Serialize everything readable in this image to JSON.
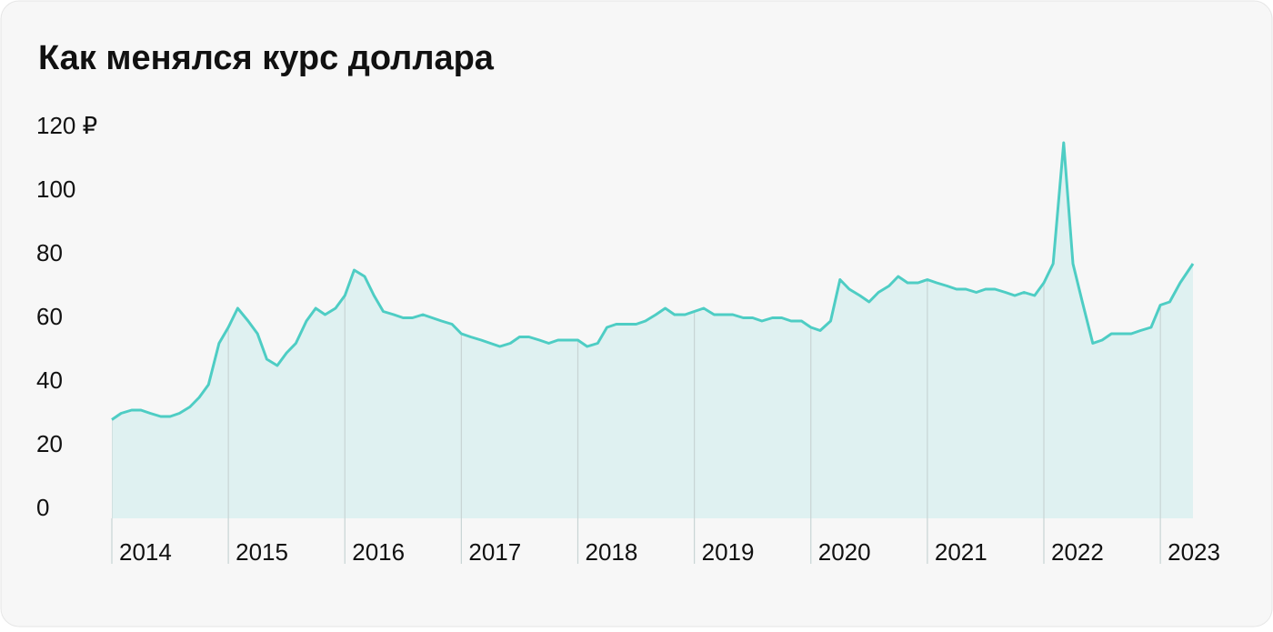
{
  "chart_data": {
    "type": "area",
    "title": "Как менялся курс доллара",
    "x": [
      2014,
      2014.08,
      2014.17,
      2014.25,
      2014.33,
      2014.42,
      2014.5,
      2014.58,
      2014.67,
      2014.75,
      2014.83,
      2014.92,
      2015,
      2015.08,
      2015.17,
      2015.25,
      2015.33,
      2015.42,
      2015.5,
      2015.58,
      2015.67,
      2015.75,
      2015.83,
      2015.92,
      2016,
      2016.08,
      2016.17,
      2016.25,
      2016.33,
      2016.42,
      2016.5,
      2016.58,
      2016.67,
      2016.75,
      2016.83,
      2016.92,
      2017,
      2017.08,
      2017.17,
      2017.25,
      2017.33,
      2017.42,
      2017.5,
      2017.58,
      2017.67,
      2017.75,
      2017.83,
      2017.92,
      2018,
      2018.08,
      2018.17,
      2018.25,
      2018.33,
      2018.42,
      2018.5,
      2018.58,
      2018.67,
      2018.75,
      2018.83,
      2018.92,
      2019,
      2019.08,
      2019.17,
      2019.25,
      2019.33,
      2019.42,
      2019.5,
      2019.58,
      2019.67,
      2019.75,
      2019.83,
      2019.92,
      2020,
      2020.08,
      2020.17,
      2020.25,
      2020.33,
      2020.42,
      2020.5,
      2020.58,
      2020.67,
      2020.75,
      2020.83,
      2020.92,
      2021,
      2021.08,
      2021.17,
      2021.25,
      2021.33,
      2021.42,
      2021.5,
      2021.58,
      2021.67,
      2021.75,
      2021.83,
      2021.92,
      2022,
      2022.08,
      2022.17,
      2022.25,
      2022.33,
      2022.42,
      2022.5,
      2022.58,
      2022.67,
      2022.75,
      2022.83,
      2022.92,
      2023,
      2023.08,
      2023.17,
      2023.28
    ],
    "values": [
      31,
      33,
      34,
      34,
      33,
      32,
      32,
      33,
      35,
      38,
      42,
      55,
      60,
      66,
      62,
      58,
      50,
      48,
      52,
      55,
      62,
      66,
      64,
      66,
      70,
      78,
      76,
      70,
      65,
      64,
      63,
      63,
      64,
      63,
      62,
      61,
      58,
      57,
      56,
      55,
      54,
      55,
      57,
      57,
      56,
      55,
      56,
      56,
      56,
      54,
      55,
      60,
      61,
      61,
      61,
      62,
      64,
      66,
      64,
      64,
      65,
      66,
      64,
      64,
      64,
      63,
      63,
      62,
      63,
      63,
      62,
      62,
      60,
      59,
      62,
      75,
      72,
      70,
      68,
      71,
      73,
      76,
      74,
      74,
      75,
      74,
      73,
      72,
      72,
      71,
      72,
      72,
      71,
      70,
      71,
      70,
      74,
      80,
      118,
      80,
      68,
      55,
      56,
      58,
      58,
      58,
      59,
      60,
      67,
      68,
      74,
      80
    ],
    "color": "#4ecdc4",
    "fill": "#dff1f1",
    "xlim": [
      2014,
      2023.28
    ],
    "xticks": [
      2014,
      2015,
      2016,
      2017,
      2018,
      2019,
      2020,
      2021,
      2022,
      2023
    ],
    "ylim": [
      0,
      120
    ],
    "yticks": [
      0,
      20,
      40,
      60,
      80,
      100,
      {
        "value": 120,
        "label": "120 ₽"
      }
    ]
  }
}
